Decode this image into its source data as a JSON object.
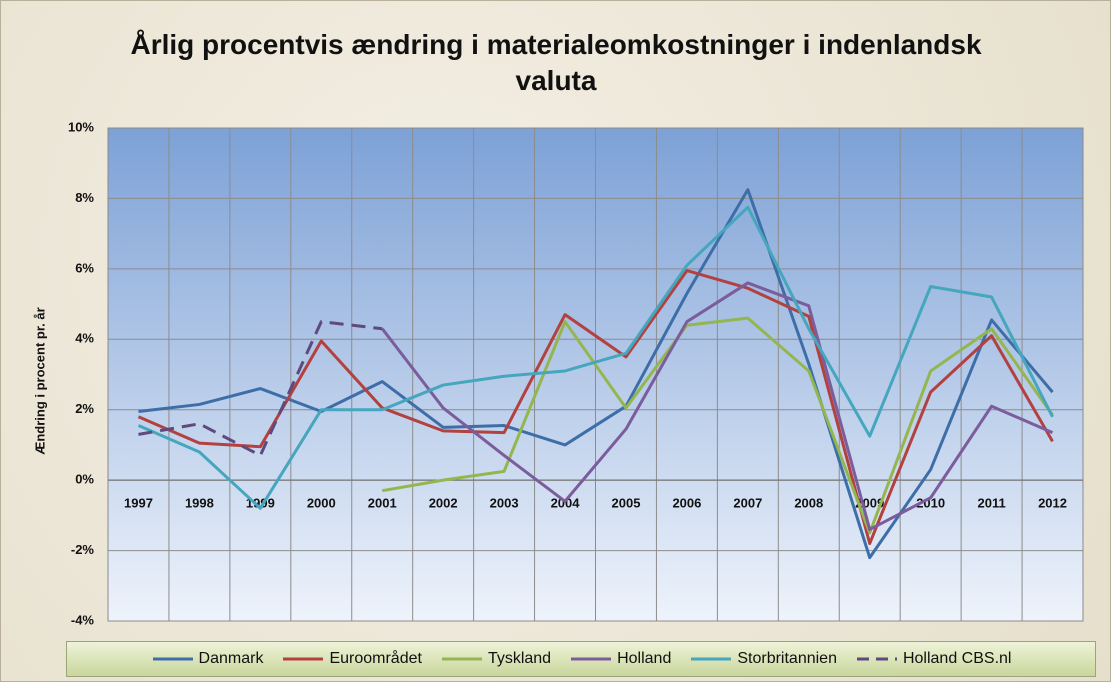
{
  "chart_data": {
    "type": "line",
    "title": "Årlig procentvis ændring i materialeomkostninger i indenlandsk valuta",
    "ylabel": "Ændring i procent pr. år",
    "categories": [
      "1997",
      "1998",
      "1999",
      "2000",
      "2001",
      "2002",
      "2003",
      "2004",
      "2005",
      "2006",
      "2007",
      "2008",
      "2009",
      "2010",
      "2011",
      "2012"
    ],
    "series": [
      {
        "name": "Danmark",
        "color": "#3e6ea8",
        "dashed": false,
        "values": [
          1.95,
          2.15,
          2.6,
          1.95,
          2.8,
          1.5,
          1.55,
          1.0,
          2.1,
          5.3,
          8.25,
          3.3,
          -2.2,
          0.3,
          4.55,
          2.5
        ]
      },
      {
        "name": "Euroområdet",
        "color": "#b2413f",
        "dashed": false,
        "values": [
          1.8,
          1.05,
          0.95,
          3.95,
          2.05,
          1.4,
          1.35,
          4.7,
          3.5,
          5.95,
          5.45,
          4.65,
          -1.8,
          2.5,
          4.1,
          1.1
        ]
      },
      {
        "name": "Tyskland",
        "color": "#93b64f",
        "dashed": false,
        "values": [
          null,
          null,
          null,
          null,
          -0.3,
          0.0,
          0.25,
          4.5,
          2.05,
          4.4,
          4.6,
          3.1,
          -1.5,
          3.1,
          4.3,
          1.85
        ]
      },
      {
        "name": "Holland",
        "color": "#7b5c9c",
        "dashed": false,
        "values": [
          null,
          null,
          null,
          null,
          4.3,
          2.05,
          0.7,
          -0.6,
          1.45,
          4.5,
          5.6,
          4.95,
          -1.4,
          -0.5,
          2.1,
          1.35
        ]
      },
      {
        "name": "Storbritannien",
        "color": "#45a6be",
        "dashed": false,
        "values": [
          1.55,
          0.8,
          -0.8,
          2.0,
          2.0,
          2.7,
          2.95,
          3.1,
          3.6,
          6.1,
          7.75,
          4.3,
          1.25,
          5.5,
          5.2,
          1.8
        ]
      },
      {
        "name": "Holland CBS.nl",
        "color": "#5e4a7e",
        "dashed": true,
        "values": [
          1.3,
          1.6,
          0.7,
          4.5,
          4.3,
          null,
          null,
          null,
          null,
          null,
          null,
          null,
          null,
          null,
          null,
          null
        ]
      }
    ],
    "ylim": [
      -4,
      10
    ],
    "yticks": [
      {
        "value": -4,
        "label": "-4%"
      },
      {
        "value": -2,
        "label": "-2%"
      },
      {
        "value": 0,
        "label": "0%"
      },
      {
        "value": 2,
        "label": "2%"
      },
      {
        "value": 4,
        "label": "4%"
      },
      {
        "value": 6,
        "label": "6%"
      },
      {
        "value": 8,
        "label": "8%"
      },
      {
        "value": 10,
        "label": "10%"
      }
    ],
    "grid": true,
    "legend": "bottom"
  }
}
